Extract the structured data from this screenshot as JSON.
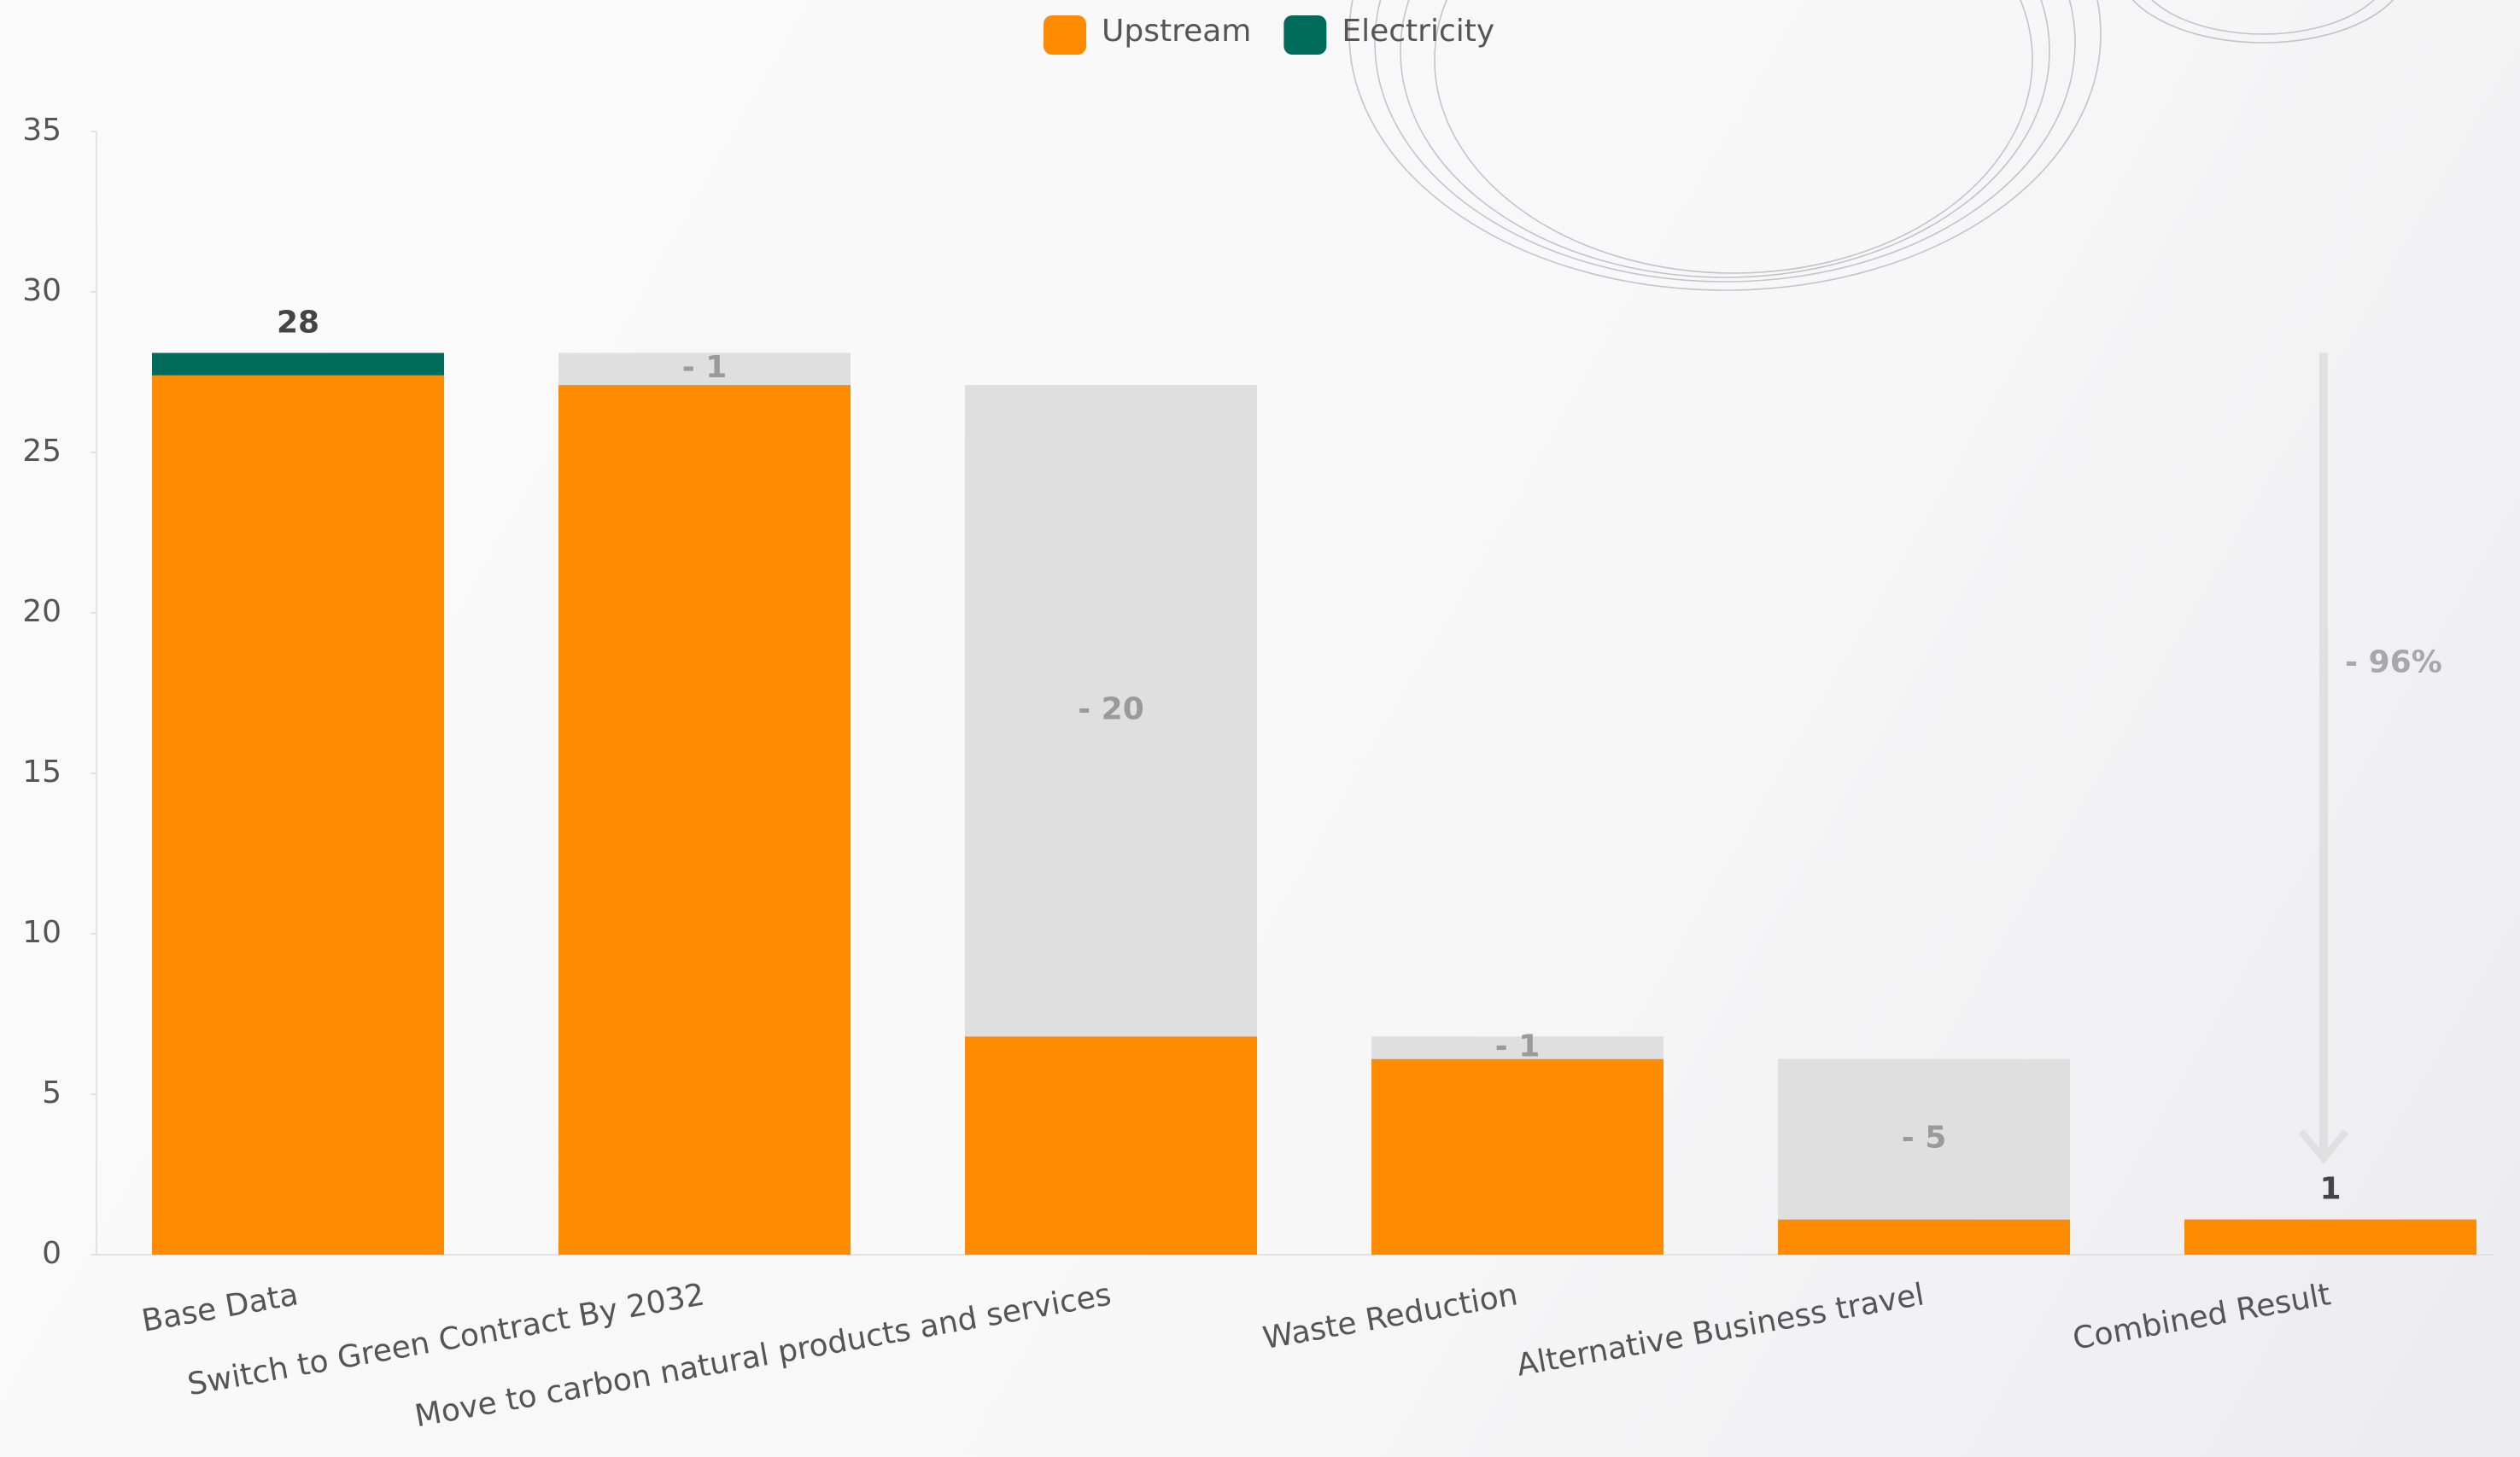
{
  "chart_data": {
    "type": "waterfall",
    "categories": [
      "Base Data",
      "Switch to Green Contract By 2032",
      "Move to carbon natural products and services",
      "Waste Reduction",
      "Alternative Business travel",
      "Combined Result"
    ],
    "series": [
      {
        "name": "Upstream",
        "color": "#ff8c00",
        "values": [
          27.4,
          27.1,
          6.8,
          6.1,
          1.1,
          1.1
        ]
      },
      {
        "name": "Electricity",
        "color": "#006b5a",
        "values": [
          0.7,
          null,
          null,
          null,
          null,
          null
        ]
      }
    ],
    "reductions": {
      "color": "#dfdfdf",
      "values": [
        null,
        -1.0,
        -20.3,
        -0.7,
        -5.0,
        null
      ],
      "value_labels": [
        null,
        "- 1",
        "- 20",
        "- 1",
        "- 5",
        null
      ]
    },
    "total_labels": [
      "28",
      null,
      null,
      null,
      null,
      "1"
    ],
    "annotation": "- 96%",
    "ylim": [
      0,
      35
    ],
    "yticks": [
      0,
      5,
      10,
      15,
      20,
      25,
      30,
      35
    ],
    "grid": false
  }
}
